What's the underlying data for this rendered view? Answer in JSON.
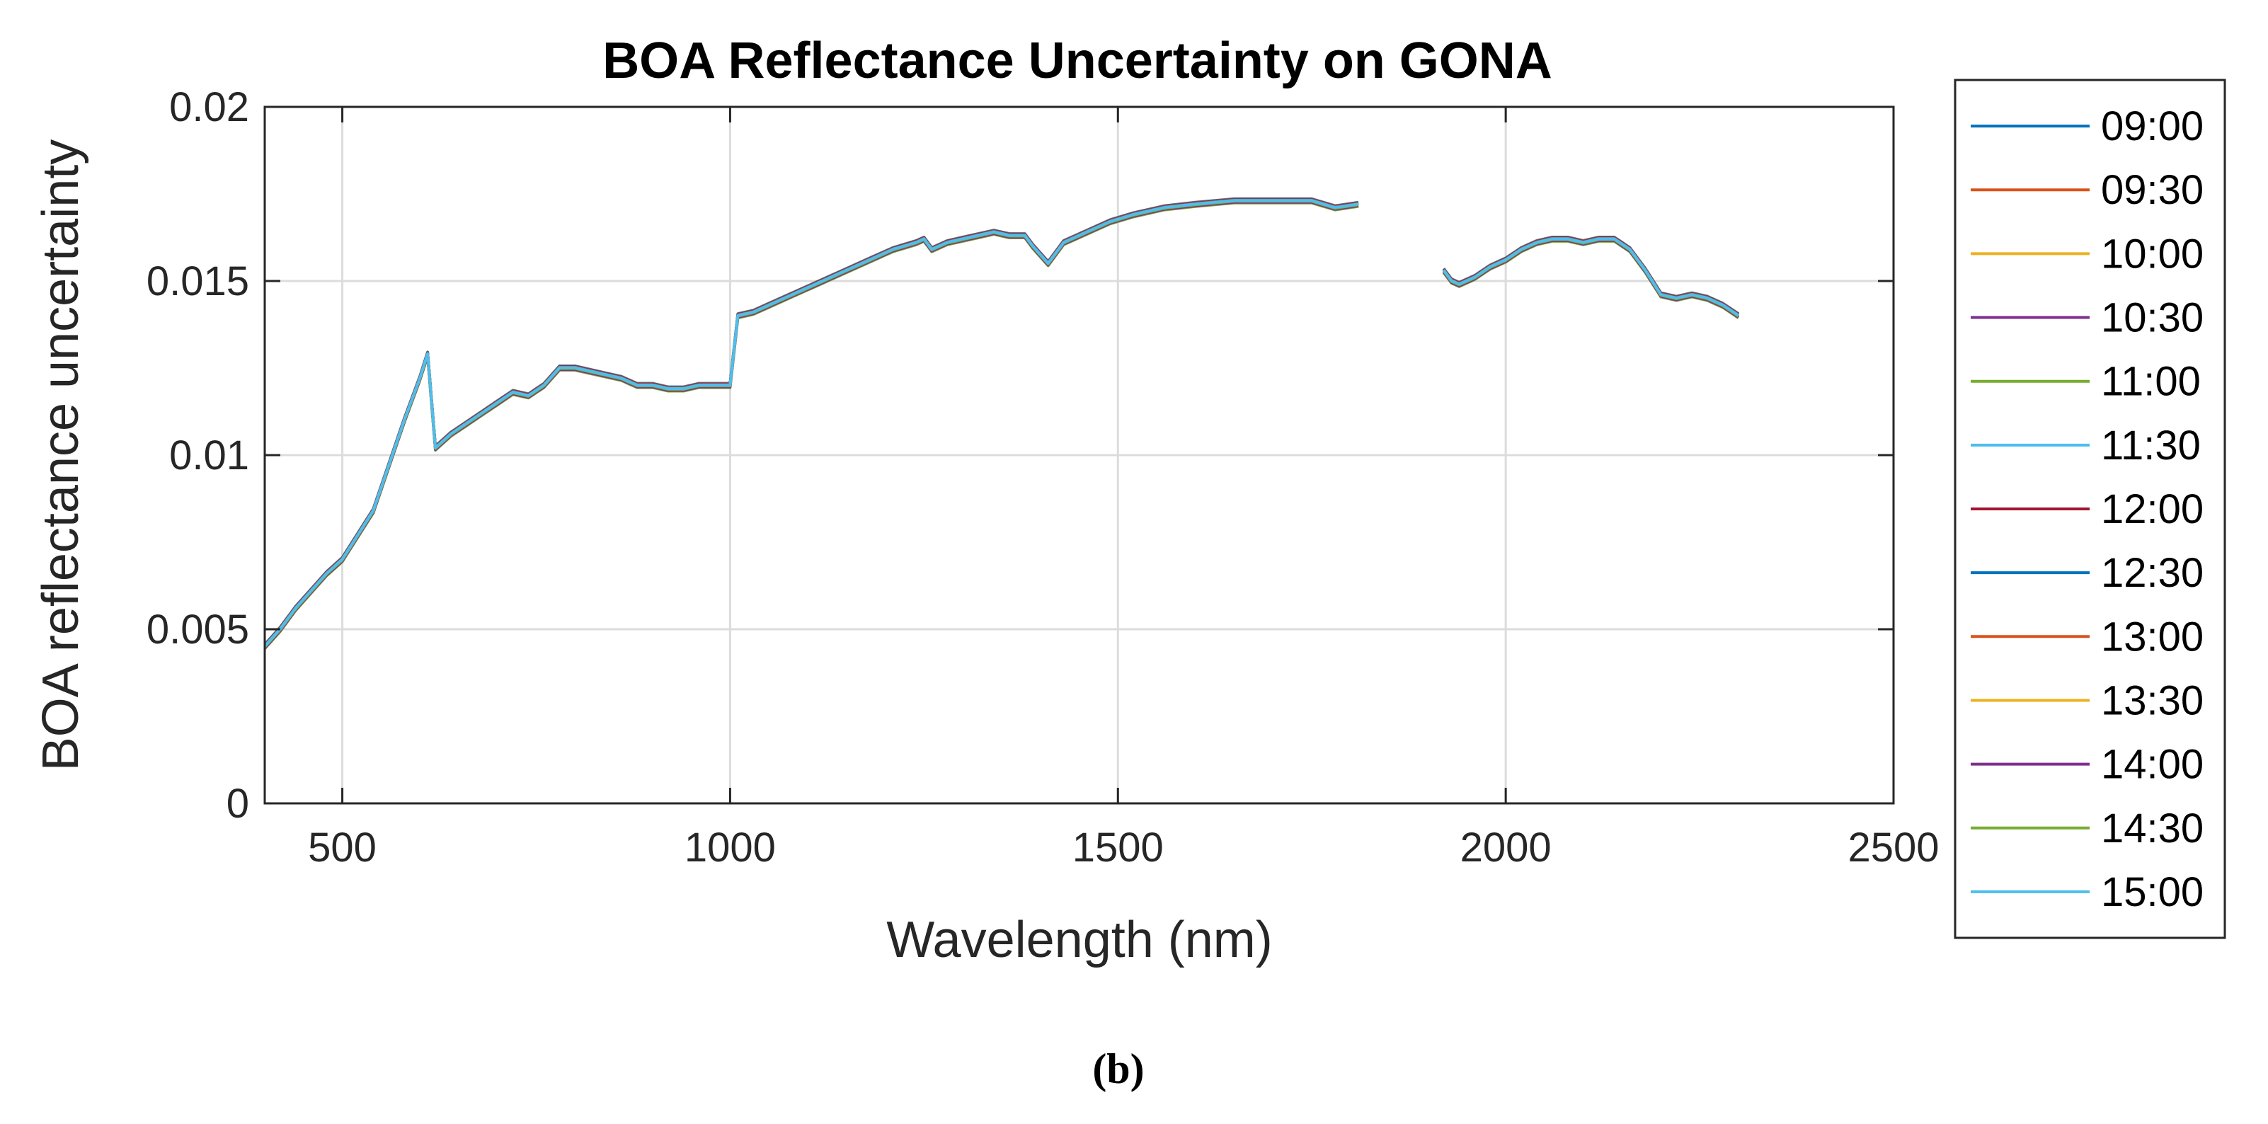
{
  "figure": {
    "caption": "(b)"
  },
  "chart_data": {
    "type": "line",
    "title": "BOA Reflectance Uncertainty on GONA",
    "xlabel": "Wavelength (nm)",
    "ylabel": "BOA reflectance uncertainty",
    "xlim": [
      400,
      2500
    ],
    "ylim": [
      0,
      0.02
    ],
    "xticks": [
      500,
      1000,
      1500,
      2000,
      2500
    ],
    "xtick_labels": [
      "500",
      "1000",
      "1500",
      "2000",
      "2500"
    ],
    "yticks": [
      0,
      0.005,
      0.01,
      0.015,
      0.02
    ],
    "ytick_labels": [
      "0",
      "0.005",
      "0.01",
      "0.015",
      "0.02"
    ],
    "grid": true,
    "legend_position": "outside-right",
    "series_note": "All 13 series overlap almost exactly; small offsets reflect the slight visible spread.",
    "base_segments": [
      {
        "x": [
          400,
          420,
          440,
          460,
          480,
          500,
          520,
          540,
          560,
          580,
          600,
          610,
          620,
          640,
          660,
          680,
          700,
          720,
          740,
          760,
          780,
          800,
          820,
          840,
          860,
          880,
          900,
          920,
          940,
          960,
          980,
          1000,
          1010,
          1030,
          1050,
          1080,
          1110,
          1150,
          1180,
          1210,
          1240,
          1250,
          1260,
          1280,
          1300,
          1320,
          1340,
          1360,
          1380,
          1390,
          1410,
          1430,
          1460,
          1490,
          1520,
          1560,
          1600,
          1650,
          1700,
          1750,
          1780,
          1810
        ],
        "y": [
          0.0045,
          0.005,
          0.0056,
          0.0061,
          0.0066,
          0.007,
          0.0077,
          0.0084,
          0.0097,
          0.011,
          0.0122,
          0.0129,
          0.0102,
          0.0106,
          0.0109,
          0.0112,
          0.0115,
          0.0118,
          0.0117,
          0.012,
          0.0125,
          0.0125,
          0.0124,
          0.0123,
          0.0122,
          0.012,
          0.012,
          0.0119,
          0.0119,
          0.012,
          0.012,
          0.012,
          0.014,
          0.0141,
          0.0143,
          0.0146,
          0.0149,
          0.0153,
          0.0156,
          0.0159,
          0.0161,
          0.0162,
          0.0159,
          0.0161,
          0.0162,
          0.0163,
          0.0164,
          0.0163,
          0.0163,
          0.016,
          0.0155,
          0.0161,
          0.0164,
          0.0167,
          0.0169,
          0.0171,
          0.0172,
          0.0173,
          0.0173,
          0.0173,
          0.0171,
          0.0172
        ]
      },
      {
        "x": [
          1920,
          1930,
          1940,
          1960,
          1980,
          2000,
          2020,
          2040,
          2060,
          2080,
          2100,
          2120,
          2140,
          2160,
          2180,
          2200,
          2220,
          2240,
          2260,
          2280,
          2300
        ],
        "y": [
          0.0153,
          0.015,
          0.0149,
          0.0151,
          0.0154,
          0.0156,
          0.0159,
          0.0161,
          0.0162,
          0.0162,
          0.0161,
          0.0162,
          0.0162,
          0.0159,
          0.0153,
          0.0146,
          0.0145,
          0.0146,
          0.0145,
          0.0143,
          0.014
        ]
      }
    ],
    "series": [
      {
        "name": "09:00",
        "color": "#0072BD",
        "offset": 6e-05
      },
      {
        "name": "09:30",
        "color": "#D95319",
        "offset": 5e-05
      },
      {
        "name": "10:00",
        "color": "#EDB120",
        "offset": -5e-05
      },
      {
        "name": "10:30",
        "color": "#7E2F8E",
        "offset": -3e-05
      },
      {
        "name": "11:00",
        "color": "#77AC30",
        "offset": -6e-05
      },
      {
        "name": "11:30",
        "color": "#4DBEEE",
        "offset": 0.0
      },
      {
        "name": "12:00",
        "color": "#A2142F",
        "offset": 4e-05
      },
      {
        "name": "12:30",
        "color": "#0072BD",
        "offset": 3e-05
      },
      {
        "name": "13:00",
        "color": "#D95319",
        "offset": 2e-05
      },
      {
        "name": "13:30",
        "color": "#EDB120",
        "offset": -2e-05
      },
      {
        "name": "14:00",
        "color": "#7E2F8E",
        "offset": -4e-05
      },
      {
        "name": "14:30",
        "color": "#77AC30",
        "offset": -1e-05
      },
      {
        "name": "15:00",
        "color": "#4DBEEE",
        "offset": 1e-05
      }
    ]
  }
}
